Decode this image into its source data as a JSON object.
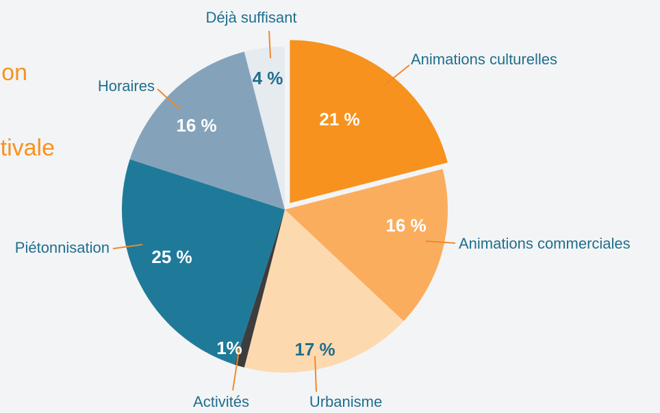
{
  "chart_data": {
    "type": "pie",
    "title_lines": [
      "on",
      "tivale"
    ],
    "categories": [
      "Animations culturelles",
      "Animations commerciales",
      "Urbanisme",
      "Activités",
      "Piétonnisation",
      "Horaires",
      "Déjà suffisant"
    ],
    "values": [
      21,
      16,
      17,
      1,
      25,
      16,
      4
    ],
    "value_labels": [
      "21 %",
      "16 %",
      "17 %",
      "1%",
      "25 %",
      "16 %",
      "4 %"
    ],
    "colors": [
      "#f7921e",
      "#fbad5e",
      "#fdd9b0",
      "#3d3d3d",
      "#1f7a9a",
      "#84a3bb",
      "#e6ebf0"
    ],
    "exploded": [
      true,
      false,
      false,
      false,
      false,
      false,
      false
    ]
  }
}
